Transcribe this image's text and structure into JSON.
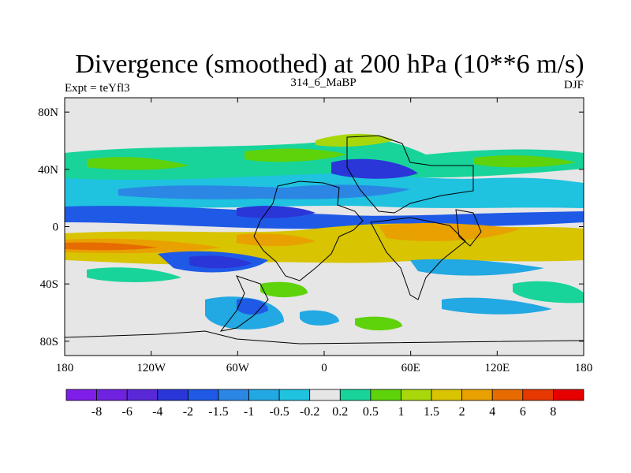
{
  "chart_data": {
    "type": "heatmap",
    "title": "Divergence (smoothed) at 200 hPa (10**6 m/s)",
    "left_label": "Expt = teYfl3",
    "center_label": "314_6_MaBP",
    "right_label": "DJF",
    "x_ticks": [
      "180",
      "120W",
      "60W",
      "0",
      "60E",
      "120E",
      "180"
    ],
    "x_tick_values": [
      -180,
      -120,
      -60,
      0,
      60,
      120,
      180
    ],
    "y_ticks": [
      "80N",
      "40N",
      "0",
      "40S",
      "80S"
    ],
    "y_tick_values": [
      80,
      40,
      0,
      -40,
      -80
    ],
    "xlim": [
      -180,
      180
    ],
    "ylim": [
      -90,
      90
    ],
    "colorbar": {
      "labels": [
        "-8",
        "-6",
        "-4",
        "-2",
        "-1.5",
        "-1",
        "-0.5",
        "-0.2",
        "0.2",
        "0.5",
        "1",
        "1.5",
        "2",
        "4",
        "6",
        "8"
      ],
      "colors": [
        "#7f1ee8",
        "#6f22e0",
        "#5b28d8",
        "#2a36d8",
        "#1f5ae6",
        "#2b86e4",
        "#22a8e2",
        "#1fc2df",
        "#e6e6e6",
        "#18d49a",
        "#5ed20a",
        "#a8d80c",
        "#d8c400",
        "#e8a100",
        "#e66b00",
        "#e63800",
        "#e60000"
      ]
    }
  }
}
